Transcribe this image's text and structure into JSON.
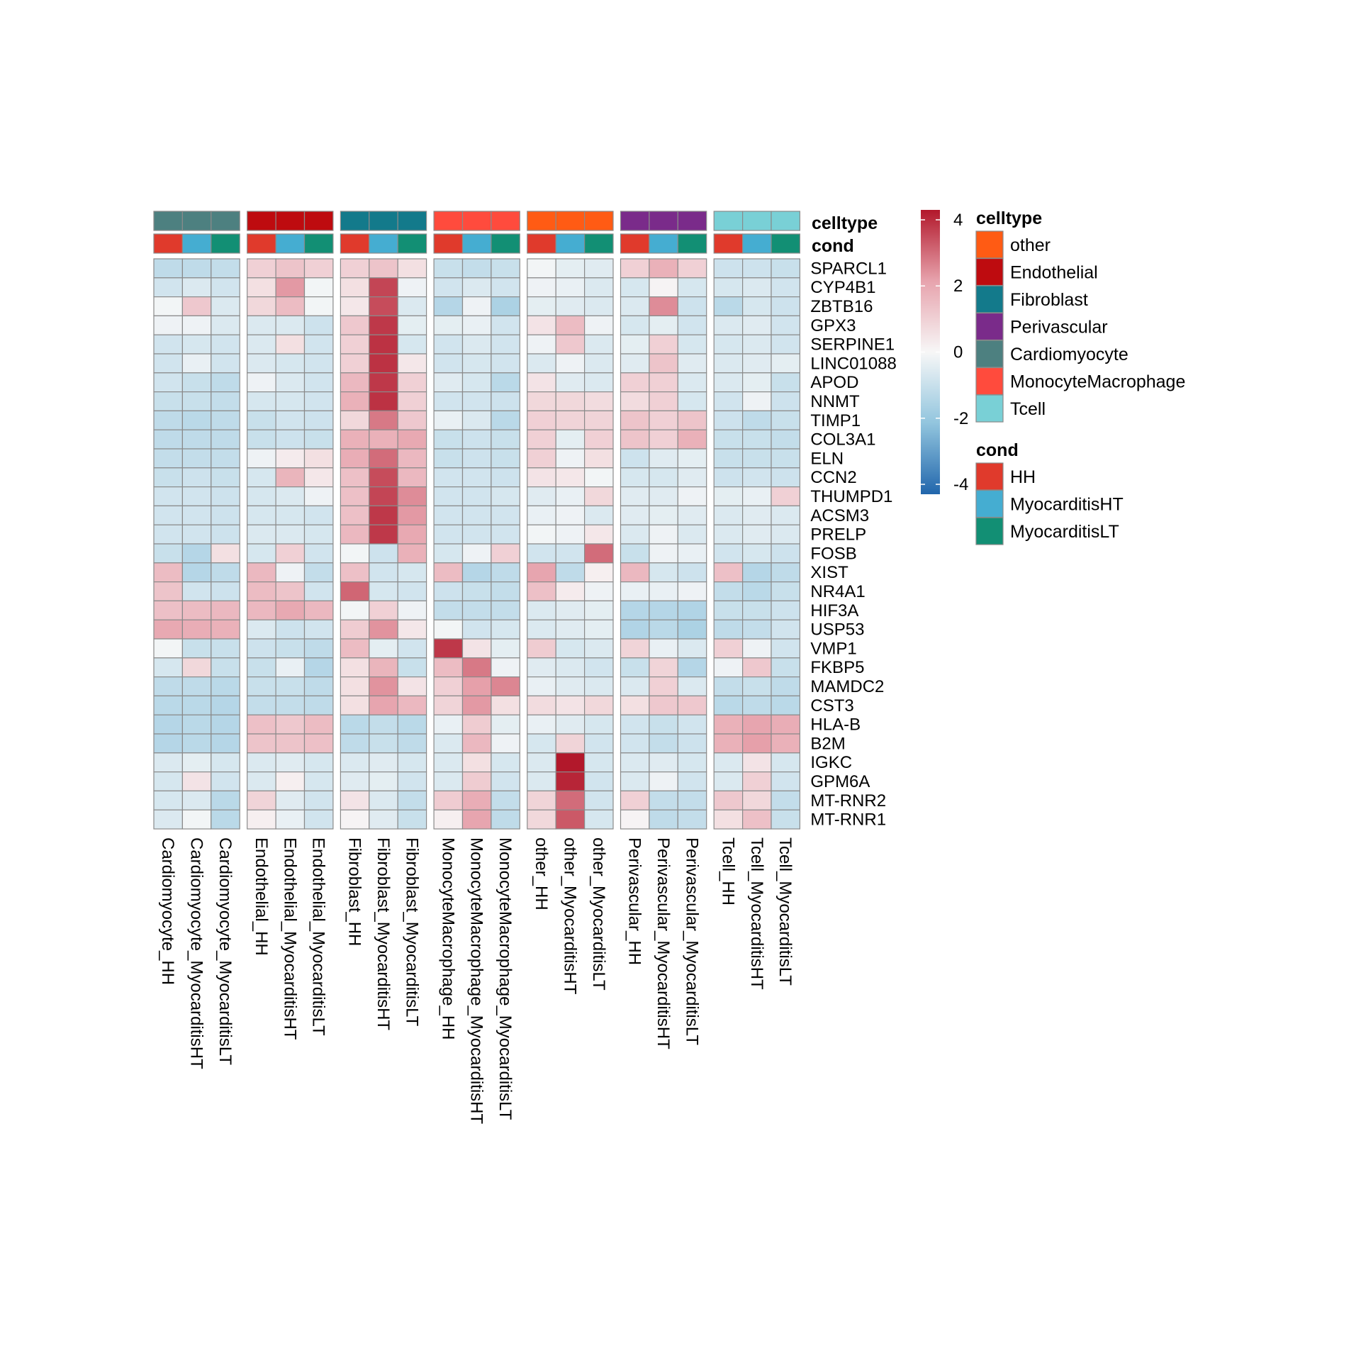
{
  "chart_data": {
    "type": "heatmap",
    "color_scale": {
      "min": -4.3,
      "mid": 0,
      "max": 4.3,
      "low_color": "#2166AC",
      "mid_color": "#F7F7F7",
      "high_color": "#B2182B",
      "ticks": [
        4,
        2,
        0,
        -2,
        -4
      ],
      "tick_labels": [
        "4",
        "2",
        "0",
        "-2",
        "-4"
      ]
    },
    "annotation_labels": {
      "celltype": "celltype",
      "cond": "cond"
    },
    "legend": {
      "celltype": {
        "title": "celltype",
        "items": [
          {
            "label": "other",
            "color": "#FF5B14"
          },
          {
            "label": "Endothelial",
            "color": "#BE0B0F"
          },
          {
            "label": "Fibroblast",
            "color": "#137A8B"
          },
          {
            "label": "Perivascular",
            "color": "#7A2B8A"
          },
          {
            "label": "Cardiomyocyte",
            "color": "#4D8080"
          },
          {
            "label": "MonocyteMacrophage",
            "color": "#FF4B3D"
          },
          {
            "label": "Tcell",
            "color": "#79D0D6"
          }
        ]
      },
      "cond": {
        "title": "cond",
        "items": [
          {
            "label": "HH",
            "color": "#E03A2C"
          },
          {
            "label": "MyocarditisHT",
            "color": "#45ADD1"
          },
          {
            "label": "MyocarditisLT",
            "color": "#128F74"
          }
        ]
      }
    },
    "column_groups": [
      "Cardiomyocyte",
      "Endothelial",
      "Fibroblast",
      "MonocyteMacrophage",
      "other",
      "Perivascular",
      "Tcell"
    ],
    "columns": [
      "Cardiomyocyte_HH",
      "Cardiomyocyte_MyocarditisHT",
      "Cardiomyocyte_MyocarditisLT",
      "Endothelial_HH",
      "Endothelial_MyocarditisHT",
      "Endothelial_MyocarditisLT",
      "Fibroblast_HH",
      "Fibroblast_MyocarditisHT",
      "Fibroblast_MyocarditisLT",
      "MonocyteMacrophage_HH",
      "MonocyteMacrophage_MyocarditisHT",
      "MonocyteMacrophage_MyocarditisLT",
      "other_HH",
      "other_MyocarditisHT",
      "other_MyocarditisLT",
      "Perivascular_HH",
      "Perivascular_MyocarditisHT",
      "Perivascular_MyocarditisLT",
      "Tcell_HH",
      "Tcell_MyocarditisHT",
      "Tcell_MyocarditisLT"
    ],
    "column_celltype": [
      "Cardiomyocyte",
      "Cardiomyocyte",
      "Cardiomyocyte",
      "Endothelial",
      "Endothelial",
      "Endothelial",
      "Fibroblast",
      "Fibroblast",
      "Fibroblast",
      "MonocyteMacrophage",
      "MonocyteMacrophage",
      "MonocyteMacrophage",
      "other",
      "other",
      "other",
      "Perivascular",
      "Perivascular",
      "Perivascular",
      "Tcell",
      "Tcell",
      "Tcell"
    ],
    "column_cond": [
      "HH",
      "MyocarditisHT",
      "MyocarditisLT",
      "HH",
      "MyocarditisHT",
      "MyocarditisLT",
      "HH",
      "MyocarditisHT",
      "MyocarditisLT",
      "HH",
      "MyocarditisHT",
      "MyocarditisLT",
      "HH",
      "MyocarditisHT",
      "MyocarditisLT",
      "HH",
      "MyocarditisHT",
      "MyocarditisLT",
      "HH",
      "MyocarditisHT",
      "MyocarditisLT"
    ],
    "rows": [
      "SPARCL1",
      "CYP4B1",
      "ZBTB16",
      "GPX3",
      "SERPINE1",
      "LINC01088",
      "APOD",
      "NNMT",
      "TIMP1",
      "COL3A1",
      "ELN",
      "CCN2",
      "THUMPD1",
      "ACSM3",
      "PRELP",
      "FOSB",
      "XIST",
      "NR4A1",
      "HIF3A",
      "USP53",
      "VMP1",
      "FKBP5",
      "MAMDC2",
      "CST3",
      "HLA-B",
      "B2M",
      "IGKC",
      "GPM6A",
      "MT-RNR2",
      "MT-RNR1"
    ],
    "values": [
      [
        -1.2,
        -1.2,
        -1.1,
        1.0,
        1.3,
        1.0,
        1.0,
        1.3,
        0.6,
        -1.0,
        -1.1,
        -1.0,
        -0.1,
        -0.4,
        -0.5,
        1.0,
        1.8,
        1.0,
        -0.9,
        -0.9,
        -1.0
      ],
      [
        -0.8,
        -0.6,
        -0.8,
        0.6,
        2.3,
        -0.1,
        0.6,
        3.6,
        -0.2,
        -0.8,
        -0.6,
        -0.8,
        -0.2,
        -0.3,
        -0.6,
        -0.7,
        0.1,
        -0.7,
        -0.7,
        -0.6,
        -0.8
      ],
      [
        -0.1,
        1.2,
        -0.6,
        0.8,
        1.5,
        -0.1,
        0.4,
        3.5,
        -0.6,
        -1.4,
        -0.2,
        -1.6,
        -0.4,
        -0.5,
        -0.6,
        -0.6,
        2.5,
        -0.9,
        -1.3,
        -0.7,
        -0.9
      ],
      [
        -0.2,
        -0.2,
        -0.6,
        -0.6,
        -0.6,
        -0.9,
        1.2,
        3.8,
        -0.4,
        -0.4,
        -0.3,
        -0.8,
        0.5,
        1.5,
        -0.2,
        -0.7,
        -0.4,
        -0.8,
        -0.6,
        -0.5,
        -0.8
      ],
      [
        -0.8,
        -0.7,
        -0.8,
        -0.6,
        0.6,
        -0.8,
        1.0,
        3.9,
        -0.7,
        -0.8,
        -0.6,
        -0.8,
        -0.2,
        1.2,
        -0.6,
        -0.4,
        1.0,
        -0.7,
        -0.7,
        -0.6,
        -0.8
      ],
      [
        -0.8,
        -0.3,
        -0.8,
        -0.6,
        -0.7,
        -0.8,
        1.0,
        3.9,
        0.4,
        -0.8,
        -0.7,
        -0.8,
        -0.6,
        -0.2,
        -0.6,
        -0.5,
        1.3,
        -0.5,
        -0.6,
        -0.5,
        -0.4
      ],
      [
        -0.8,
        -1.0,
        -1.2,
        -0.2,
        -0.6,
        -0.8,
        1.6,
        3.8,
        1.0,
        -0.5,
        -0.7,
        -1.3,
        0.5,
        -0.5,
        -0.6,
        1.0,
        1.0,
        -0.6,
        -0.6,
        -0.4,
        -1.0
      ],
      [
        -1.0,
        -1.0,
        -1.1,
        -0.7,
        -0.7,
        -0.8,
        1.8,
        3.9,
        1.0,
        -0.8,
        -0.8,
        -0.9,
        0.8,
        0.8,
        0.7,
        0.7,
        1.0,
        -0.7,
        -0.8,
        -0.2,
        -0.9
      ],
      [
        -1.2,
        -1.3,
        -1.2,
        -1.0,
        -0.8,
        -0.9,
        0.8,
        2.8,
        1.2,
        -0.3,
        -0.6,
        -1.3,
        1.0,
        0.9,
        0.9,
        1.3,
        1.0,
        1.3,
        -0.9,
        -1.2,
        -1.0
      ],
      [
        -1.2,
        -1.2,
        -1.2,
        -1.0,
        -0.9,
        -1.0,
        1.8,
        1.8,
        2.0,
        -1.0,
        -0.9,
        -1.0,
        1.0,
        -0.4,
        1.0,
        1.3,
        1.0,
        1.8,
        -1.0,
        -1.0,
        -1.1
      ],
      [
        -1.1,
        -1.1,
        -1.1,
        -0.2,
        0.3,
        0.6,
        1.9,
        3.0,
        1.6,
        -1.0,
        -0.9,
        -1.0,
        1.0,
        -0.2,
        0.6,
        -0.9,
        -0.5,
        -0.4,
        -1.0,
        -1.0,
        -1.0
      ],
      [
        -1.0,
        -0.9,
        -1.0,
        -0.7,
        1.7,
        0.4,
        1.4,
        3.5,
        1.6,
        -0.8,
        -0.8,
        -0.9,
        0.5,
        0.4,
        -0.1,
        -0.7,
        -0.7,
        -0.5,
        -0.9,
        -0.8,
        -0.9
      ],
      [
        -0.8,
        -0.8,
        -0.9,
        -0.7,
        -0.6,
        -0.2,
        1.4,
        3.6,
        2.5,
        -0.8,
        -0.8,
        -0.7,
        -0.5,
        -0.3,
        0.8,
        -0.5,
        -0.5,
        -0.2,
        -0.4,
        -0.3,
        1.0
      ],
      [
        -0.8,
        -0.8,
        -0.9,
        -0.7,
        -0.7,
        -0.8,
        1.4,
        3.8,
        2.3,
        -0.8,
        -0.8,
        -0.8,
        -0.3,
        -0.2,
        -0.6,
        -0.5,
        -0.4,
        -0.5,
        -0.6,
        -0.5,
        -0.6
      ],
      [
        -0.8,
        -0.8,
        -0.9,
        -0.6,
        -0.6,
        -0.7,
        1.6,
        3.8,
        2.0,
        -0.8,
        -0.8,
        -0.8,
        -0.1,
        -0.2,
        0.4,
        -0.6,
        -0.2,
        -0.6,
        -0.6,
        -0.5,
        -0.6
      ],
      [
        -1.0,
        -1.4,
        0.6,
        -0.7,
        1.0,
        -0.8,
        -0.1,
        -0.9,
        1.8,
        -0.7,
        -0.2,
        1.0,
        -0.8,
        -0.8,
        3.0,
        -1.0,
        -0.2,
        -0.3,
        -0.8,
        -0.7,
        -0.9
      ],
      [
        1.5,
        -1.4,
        -1.2,
        1.6,
        -0.2,
        -1.1,
        1.4,
        -0.8,
        -0.7,
        1.5,
        -1.4,
        -1.2,
        2.1,
        -1.2,
        0.2,
        1.6,
        -0.7,
        -0.9,
        1.4,
        -1.4,
        -1.2
      ],
      [
        1.3,
        -0.8,
        -0.9,
        1.5,
        1.3,
        -0.8,
        3.1,
        -0.7,
        -0.8,
        -0.9,
        -1.0,
        -1.1,
        1.4,
        0.3,
        -0.2,
        -0.3,
        -0.3,
        -0.2,
        -1.1,
        -1.3,
        -1.0
      ],
      [
        1.4,
        1.5,
        1.6,
        1.6,
        2.0,
        1.6,
        -0.1,
        1.0,
        -0.2,
        -1.1,
        -1.1,
        -1.1,
        -0.6,
        -0.5,
        -0.4,
        -1.4,
        -1.4,
        -1.5,
        -1.0,
        -1.0,
        -0.9
      ],
      [
        2.0,
        1.9,
        1.8,
        -0.6,
        -0.9,
        -0.8,
        1.1,
        2.4,
        0.4,
        -0.1,
        -0.8,
        -0.7,
        -0.6,
        -0.5,
        -0.4,
        -1.5,
        -1.3,
        -1.6,
        -1.2,
        -1.1,
        -0.8
      ],
      [
        -0.1,
        -1.0,
        -1.0,
        -0.9,
        -1.0,
        -1.2,
        1.5,
        -0.4,
        -0.8,
        3.8,
        0.5,
        -0.4,
        1.1,
        -0.7,
        -0.6,
        0.9,
        -0.3,
        -0.6,
        1.0,
        -0.2,
        -0.8
      ],
      [
        -0.7,
        0.8,
        -1.0,
        -1.0,
        -0.3,
        -1.4,
        0.6,
        1.7,
        -1.0,
        1.5,
        2.8,
        -0.2,
        -0.5,
        -0.6,
        -0.8,
        -1.0,
        0.9,
        -1.4,
        -0.2,
        1.2,
        -1.0
      ],
      [
        -1.2,
        -1.2,
        -1.3,
        -1.0,
        -1.0,
        -1.2,
        0.6,
        2.4,
        0.5,
        1.0,
        2.2,
        2.6,
        -0.3,
        -0.5,
        -0.6,
        -0.6,
        1.0,
        -0.6,
        -1.1,
        -1.0,
        -1.2
      ],
      [
        -1.3,
        -1.3,
        -1.4,
        -1.1,
        -1.1,
        -1.2,
        0.6,
        2.1,
        1.6,
        0.9,
        2.3,
        0.6,
        0.7,
        0.5,
        0.8,
        0.6,
        1.2,
        1.2,
        -1.3,
        -1.2,
        -1.3
      ],
      [
        -1.4,
        -1.3,
        -1.4,
        1.4,
        1.2,
        1.5,
        -1.3,
        -1.1,
        -1.3,
        -0.3,
        1.1,
        -0.4,
        -0.3,
        -0.5,
        -0.7,
        -0.8,
        -1.0,
        -0.8,
        1.8,
        2.1,
        1.9
      ],
      [
        -1.4,
        -1.3,
        -1.4,
        1.3,
        1.3,
        1.4,
        -1.2,
        -1.0,
        -1.2,
        -0.6,
        1.6,
        -0.2,
        -0.7,
        0.9,
        -0.8,
        -0.8,
        -1.1,
        -0.9,
        1.8,
        2.2,
        1.8
      ],
      [
        -0.6,
        -0.4,
        -0.7,
        -0.6,
        -0.5,
        -0.7,
        -0.6,
        -0.5,
        -0.7,
        -0.6,
        0.6,
        -0.7,
        -0.6,
        4.3,
        -0.7,
        -0.6,
        -0.5,
        -0.7,
        -0.6,
        0.5,
        -0.7
      ],
      [
        -0.7,
        0.5,
        -0.8,
        -0.6,
        0.2,
        -0.7,
        -0.5,
        -0.4,
        -0.8,
        -0.6,
        1.1,
        -0.8,
        -0.6,
        4.1,
        -0.8,
        -0.6,
        -0.2,
        -0.8,
        -0.6,
        1.0,
        -0.8
      ],
      [
        -0.7,
        -0.6,
        -1.3,
        0.9,
        -0.5,
        -0.8,
        0.5,
        -0.6,
        -1.1,
        1.1,
        1.9,
        -1.1,
        0.9,
        3.0,
        -0.8,
        1.0,
        -1.1,
        -1.1,
        1.2,
        0.8,
        -1.1
      ],
      [
        -0.6,
        -0.1,
        -1.3,
        0.2,
        -0.3,
        -0.8,
        0.1,
        -0.5,
        -1.0,
        0.2,
        2.1,
        -1.2,
        0.8,
        3.3,
        -0.7,
        0.1,
        -1.2,
        -1.1,
        0.6,
        1.4,
        -1.0
      ]
    ]
  }
}
